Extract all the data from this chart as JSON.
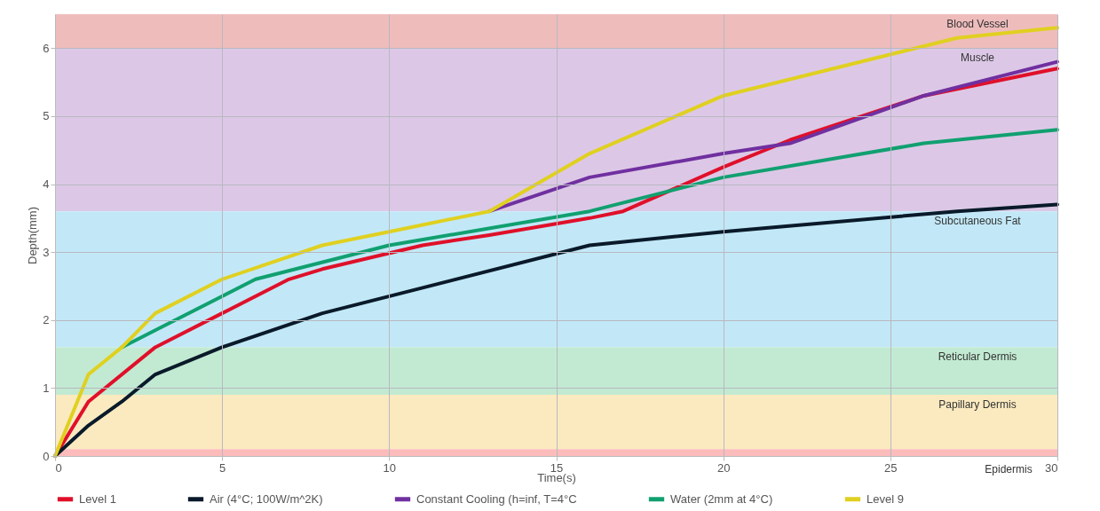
{
  "chart_data": {
    "type": "line",
    "xlabel": "Time(s)",
    "ylabel": "Depth(mm)",
    "xlim": [
      0,
      30
    ],
    "xticks": [
      0,
      5,
      10,
      15,
      20,
      25,
      30
    ],
    "ylim": [
      0,
      6.5
    ],
    "yticks": [
      0,
      1,
      2,
      3,
      4,
      5,
      6
    ],
    "grid": true,
    "legend": "bottom",
    "marker": "none",
    "line_style": "solid",
    "bands": [
      {
        "axis": "y",
        "from": 6.0,
        "to": 6.5,
        "label": "Blood Vessel",
        "color": "#efbcbc"
      },
      {
        "axis": "y",
        "from": 3.6,
        "to": 6.0,
        "label": "Muscle",
        "color": "#dcc8e6"
      },
      {
        "axis": "y",
        "from": 1.6,
        "to": 3.6,
        "label": "Subcutaneous Fat",
        "color": "#c2e8f7"
      },
      {
        "axis": "y",
        "from": 0.9,
        "to": 1.6,
        "label": "Reticular Dermis",
        "color": "#c2ead2"
      },
      {
        "axis": "y",
        "from": 0.1,
        "to": 0.9,
        "label": "Papillary Dermis",
        "color": "#fbeac0"
      },
      {
        "axis": "y",
        "from": 0,
        "to": 0.1,
        "label": "Epidermis",
        "color": "#fcbcbc"
      }
    ],
    "series": [
      {
        "name": "Level 1",
        "color": "#e0102a",
        "x": [
          0,
          1,
          3,
          5,
          7,
          8,
          11,
          13,
          16,
          17,
          20,
          22,
          26,
          30
        ],
        "values": [
          0,
          0.8,
          1.6,
          2.1,
          2.6,
          2.75,
          3.1,
          3.25,
          3.5,
          3.6,
          4.25,
          4.65,
          5.3,
          5.7
        ]
      },
      {
        "name": "Air (4°C; 100W/m^2K)",
        "color": "#0a1a2a",
        "x": [
          0,
          1,
          2,
          3,
          5,
          8,
          16,
          20,
          27,
          30
        ],
        "values": [
          0,
          0.45,
          0.8,
          1.2,
          1.6,
          2.1,
          3.1,
          3.3,
          3.6,
          3.7
        ]
      },
      {
        "name": "Constant Cooling (h=inf, T=4°C",
        "color": "#7030a0",
        "x": [
          13,
          16,
          20,
          22,
          26,
          30
        ],
        "values": [
          3.6,
          4.1,
          4.45,
          4.6,
          5.3,
          5.8
        ]
      },
      {
        "name": "Water (2mm at 4°C)",
        "color": "#11a070",
        "x": [
          2,
          3,
          6,
          10,
          16,
          20,
          26,
          30
        ],
        "values": [
          1.6,
          1.85,
          2.6,
          3.1,
          3.6,
          4.1,
          4.6,
          4.8
        ]
      },
      {
        "name": "Level 9",
        "color": "#e0d020",
        "x": [
          0,
          1,
          2,
          3,
          5,
          8,
          10,
          13,
          16,
          20,
          27,
          30
        ],
        "values": [
          0,
          1.2,
          1.6,
          2.1,
          2.6,
          3.1,
          3.3,
          3.6,
          4.45,
          5.3,
          6.15,
          6.3
        ]
      }
    ]
  }
}
